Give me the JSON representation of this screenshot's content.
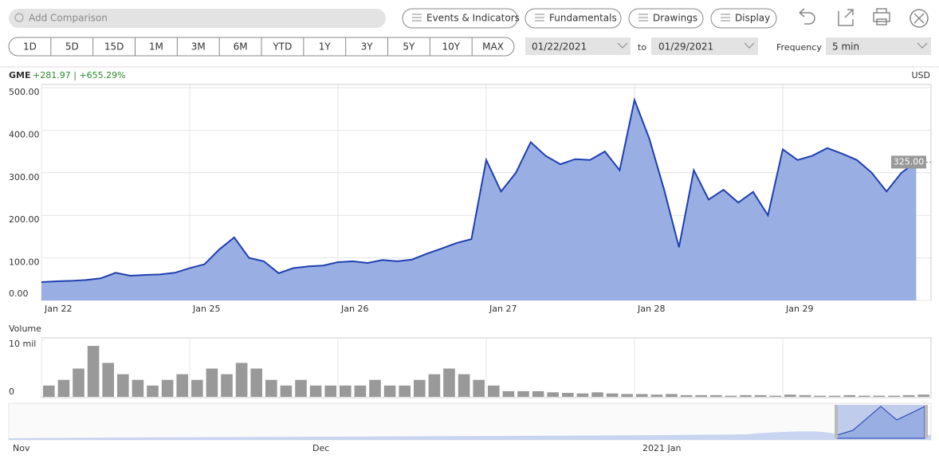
{
  "toolbar": {
    "search": "Add Comparison",
    "buttons": [
      "Events & Indicators",
      "Fundamentals",
      "Drawings",
      "Display"
    ],
    "ranges": [
      "1D",
      "5D",
      "15D",
      "1M",
      "3M",
      "6M",
      "YTD",
      "1Y",
      "3Y",
      "5Y",
      "10Y",
      "MAX"
    ],
    "from": "01/22/2021",
    "to_label": "to",
    "to": "01/29/2021",
    "frequency_label": "Frequency",
    "frequency": "5 min"
  },
  "chart_data": [
    {
      "type": "area",
      "symbol": "GME",
      "change": "+281.97 | +655.29%",
      "currency": "USD",
      "color": "#1f3fb0",
      "fill": "#99aee3",
      "categories": [
        "Jan 22",
        null,
        null,
        null,
        null,
        null,
        null,
        null,
        null,
        null,
        "Jan 25",
        null,
        null,
        null,
        null,
        null,
        null,
        null,
        null,
        null,
        "Jan 26",
        null,
        null,
        null,
        null,
        null,
        null,
        null,
        null,
        null,
        "Jan 27",
        null,
        null,
        null,
        null,
        null,
        null,
        null,
        null,
        null,
        "Jan 28",
        null,
        null,
        null,
        null,
        null,
        null,
        null,
        null,
        null,
        "Jan 29",
        null,
        null,
        null,
        null,
        null,
        null,
        null,
        null,
        null
      ],
      "values": [
        43,
        45,
        46,
        48,
        52,
        65,
        58,
        60,
        61,
        65,
        76,
        85,
        120,
        148,
        100,
        92,
        64,
        76,
        80,
        82,
        90,
        92,
        88,
        95,
        92,
        96,
        110,
        122,
        135,
        144,
        330,
        256,
        300,
        372,
        340,
        320,
        332,
        330,
        350,
        306,
        471,
        380,
        260,
        125,
        306,
        237,
        260,
        230,
        255,
        200,
        355,
        330,
        340,
        358,
        345,
        330,
        300,
        256,
        300,
        325
      ],
      "last_price": {
        "value": 325,
        "label": "325.00"
      },
      "ylim": [
        0,
        500
      ],
      "yticks": [
        {
          "value": 0,
          "label": "0.00"
        },
        {
          "value": 100,
          "label": "100.00"
        },
        {
          "value": 200,
          "label": "200.00"
        },
        {
          "value": 300,
          "label": "300.00"
        },
        {
          "value": 400,
          "label": "400.00"
        },
        {
          "value": 500,
          "label": "500.00"
        }
      ],
      "grid": true
    },
    {
      "type": "bar",
      "title": "Volume",
      "color": "#999999",
      "values": [
        2,
        3,
        5,
        9,
        6,
        4,
        3,
        2,
        3,
        4,
        3,
        5,
        4,
        6,
        5,
        3,
        2,
        3,
        2,
        2,
        2,
        2,
        3,
        2,
        2,
        3,
        4,
        5,
        4,
        3,
        2,
        1,
        1,
        1,
        0.8,
        0.7,
        0.6,
        0.8,
        0.6,
        0.5,
        0.5,
        0.4,
        0.5,
        0.3,
        0.3,
        0.3,
        0.2,
        0.3,
        0.3,
        0.2,
        0.4,
        0.3,
        0.2,
        0.2,
        0.3,
        0.2,
        0.2,
        0.2,
        0.3,
        0.4
      ],
      "ylim": [
        0,
        10
      ],
      "yticks": [
        0,
        {
          "value": 10,
          "label": "10 mil"
        }
      ]
    }
  ],
  "navigator": {
    "labels": [
      "Nov",
      "Dec",
      "2021 Jan"
    ]
  }
}
